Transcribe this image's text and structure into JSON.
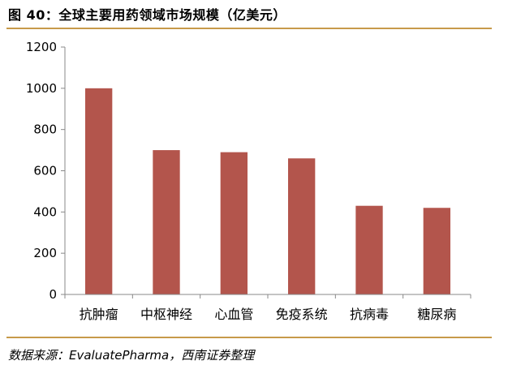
{
  "figure": {
    "title": "图 40：全球主要用药领域市场规模（亿美元）",
    "source": "数据来源：EvaluatePharma，西南证券整理"
  },
  "colors": {
    "bar": "#b3554c",
    "rule": "#c79a4a",
    "axis": "#888888"
  },
  "chart_data": {
    "type": "bar",
    "title": "",
    "xlabel": "",
    "ylabel": "",
    "categories": [
      "抗肿瘤",
      "中枢神经",
      "心血管",
      "免疫系统",
      "抗病毒",
      "糖尿病"
    ],
    "values": [
      1000,
      700,
      690,
      660,
      430,
      420
    ],
    "ylim": [
      0,
      1200
    ],
    "yticks": [
      "0",
      "200",
      "400",
      "600",
      "800",
      "1000",
      "1200"
    ],
    "grid": false,
    "legend": "none"
  }
}
